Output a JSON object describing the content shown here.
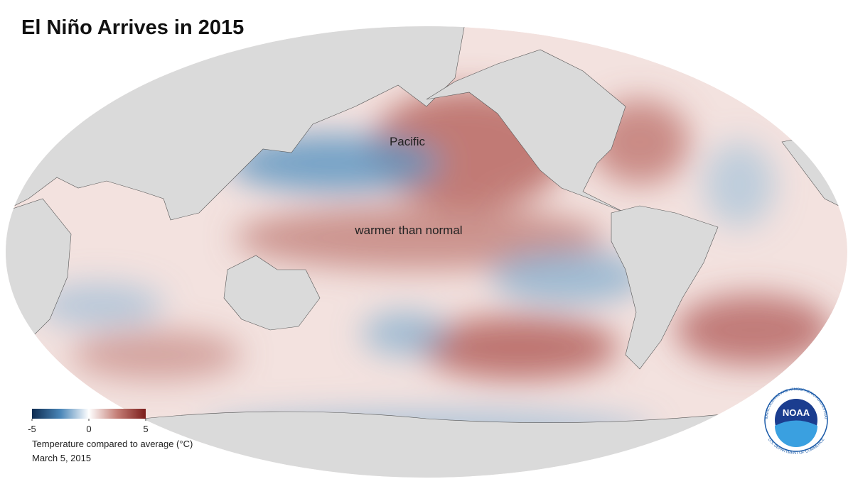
{
  "header": {
    "title": "El Niño Arrives in 2015"
  },
  "map": {
    "labels": [
      "Pacific",
      "warmer than normal"
    ]
  },
  "legend": {
    "range": [
      -5,
      5
    ],
    "ticks": [
      -5,
      0,
      5
    ],
    "colors": [
      "#0d2b50",
      "#4a86b8",
      "#ffffff",
      "#c47e76",
      "#7b1c1a"
    ],
    "caption": "Temperature compared to average (°C)",
    "date": "March 5, 2015"
  },
  "logo": {
    "name": "NOAA",
    "ring_top": "NATIONAL OCEANIC AND ATMOSPHERIC ADMINISTRATION",
    "ring_bottom": "U.S. DEPARTMENT OF COMMERCE"
  }
}
